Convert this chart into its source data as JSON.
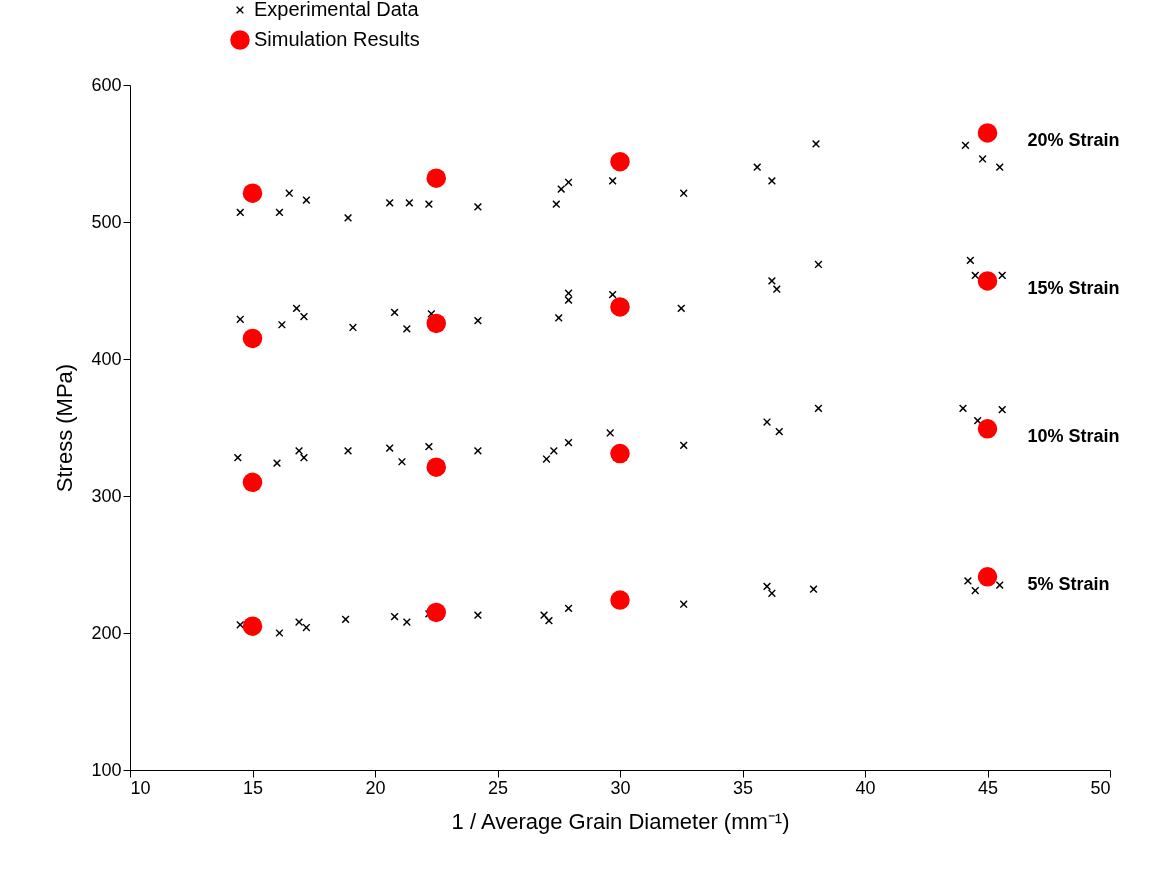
{
  "chart_data": {
    "type": "scatter",
    "xlabel": "1 / Average Grain Diameter (mm⁻¹)",
    "ylabel": "Stress (MPa)",
    "xlim": [
      10,
      50
    ],
    "xticks": [
      10,
      15,
      20,
      25,
      30,
      35,
      40,
      45,
      50
    ],
    "ylim": [
      100,
      600
    ],
    "yticks": [
      100,
      200,
      300,
      400,
      500,
      600
    ],
    "grid": false,
    "legend": "top left",
    "series": [
      {
        "name": "Experimental Data",
        "color": "#000000",
        "marker": "cross",
        "x": [
          14.5,
          16.1,
          16.5,
          17.2,
          18.9,
          20.6,
          21.4,
          22.2,
          24.2,
          27.4,
          27.6,
          27.9,
          29.7,
          32.6,
          35.6,
          36.2,
          38.0,
          44.1,
          44.8,
          45.5,
          14.5,
          16.2,
          16.8,
          17.1,
          19.1,
          20.8,
          21.3,
          22.3,
          24.2,
          27.5,
          27.9,
          27.9,
          29.7,
          32.5,
          36.2,
          36.4,
          38.1,
          44.3,
          44.5,
          45.6,
          14.4,
          16.0,
          16.9,
          17.1,
          18.9,
          20.6,
          21.1,
          22.2,
          24.2,
          27.0,
          27.3,
          27.9,
          29.6,
          32.6,
          36.0,
          36.5,
          38.1,
          44.0,
          44.6,
          45.6,
          14.5,
          16.1,
          16.9,
          17.2,
          18.8,
          20.8,
          21.3,
          22.2,
          24.2,
          26.9,
          27.1,
          27.9,
          32.6,
          36.0,
          36.2,
          37.9,
          44.2,
          44.5,
          45.5
        ],
        "values": [
          507,
          507,
          521,
          516,
          503,
          514,
          514,
          513,
          511,
          513,
          524,
          529,
          530,
          521,
          540,
          530,
          557,
          556,
          546,
          540,
          429,
          425,
          437,
          431,
          423,
          434,
          422,
          433,
          428,
          430,
          443,
          448,
          447,
          437,
          457,
          451,
          469,
          472,
          461,
          461,
          328,
          324,
          333,
          328,
          333,
          335,
          325,
          336,
          333,
          327,
          333,
          339,
          346,
          337,
          354,
          347,
          364,
          364,
          355,
          363,
          206,
          200,
          208,
          204,
          210,
          212,
          208,
          214,
          213,
          213,
          209,
          218,
          221,
          234,
          229,
          232,
          238,
          231,
          235
        ]
      },
      {
        "name": "Simulation Results",
        "color": "#ff0000",
        "marker": "circle",
        "x": [
          15,
          22.5,
          30,
          45,
          15,
          22.5,
          30,
          45,
          15,
          22.5,
          30,
          45,
          15,
          22.5,
          30,
          45
        ],
        "values": [
          521,
          532,
          544,
          565,
          415,
          426,
          438,
          457,
          310,
          321,
          331,
          349,
          205,
          215,
          224,
          241
        ]
      }
    ],
    "annotations": [
      "20% Strain",
      "15% Strain",
      "10% Strain",
      "5% Strain"
    ]
  }
}
